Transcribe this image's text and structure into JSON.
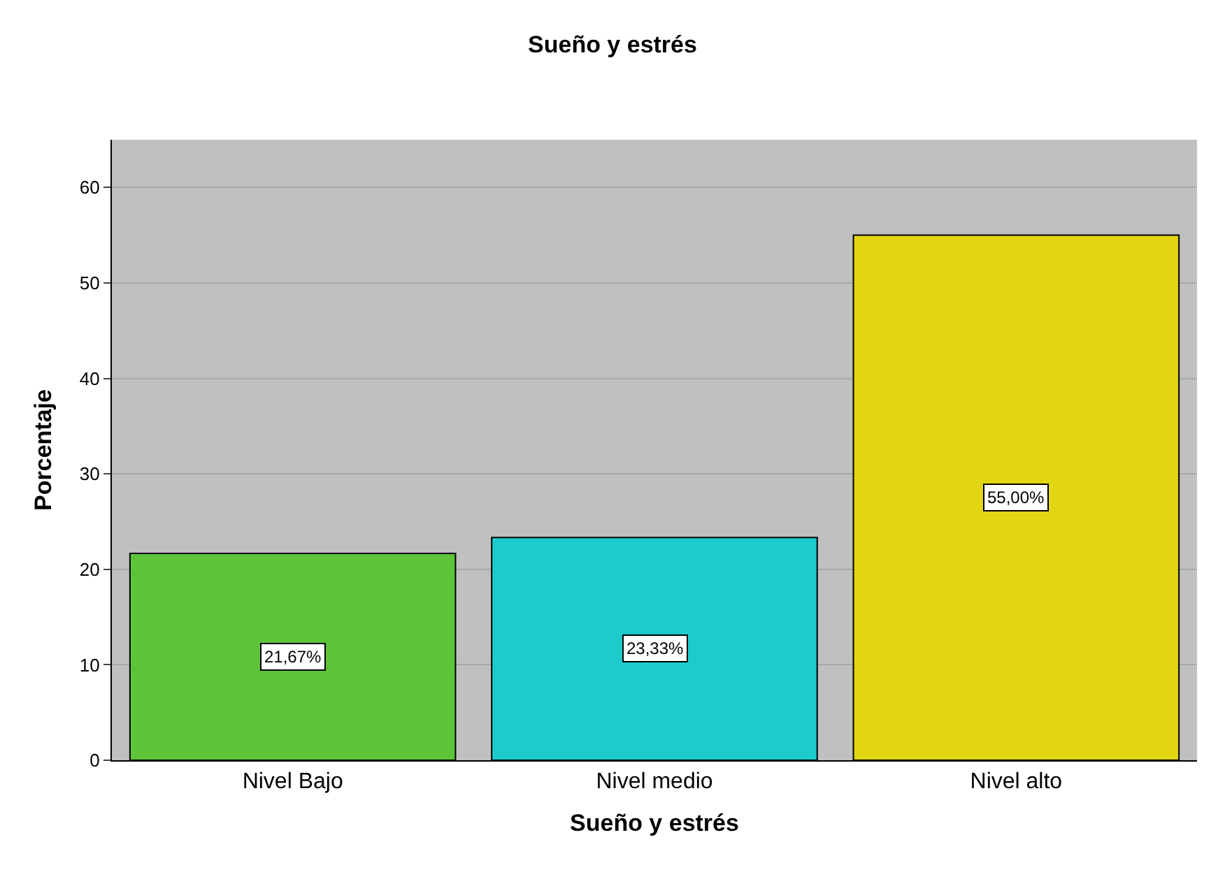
{
  "chart_data": {
    "type": "bar",
    "title": "Sueño y estrés",
    "xlabel": "Sueño y estrés",
    "ylabel": "Porcentaje",
    "categories": [
      "Nivel Bajo",
      "Nivel medio",
      "Nivel alto"
    ],
    "values": [
      21.67,
      23.33,
      55.0
    ],
    "colors": [
      "#5dc43a",
      "#1ccccc",
      "#e2d511"
    ],
    "value_labels": [
      "21,67%",
      "23,33%",
      "55,00%"
    ],
    "ylim": [
      0,
      65
    ],
    "yticks": [
      0,
      10,
      20,
      30,
      40,
      50,
      60
    ],
    "grid": "y"
  }
}
